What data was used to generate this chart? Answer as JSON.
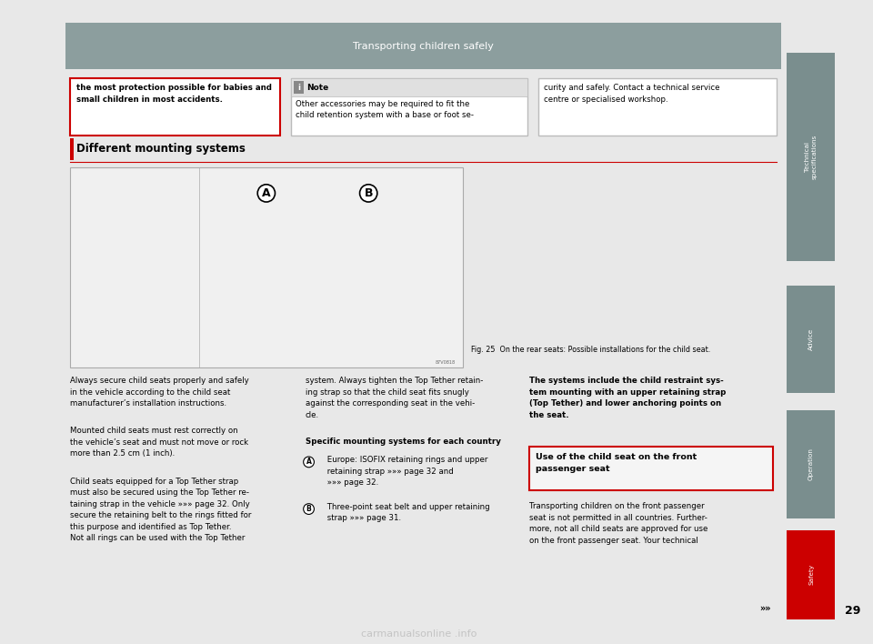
{
  "page_bg": "#e8e8e8",
  "content_bg": "#ffffff",
  "header_title": "Transporting children safely",
  "header_bg": "#8c9e9e",
  "header_text_color": "#ffffff",
  "sidebar_tabs": [
    "Technical specifications",
    "Advice",
    "Operation",
    "Safety"
  ],
  "sidebar_colors": [
    "#7a8e8e",
    "#7a8e8e",
    "#7a8e8e",
    "#cc0000"
  ],
  "page_number": "29",
  "box1_text": "the most protection possible for babies and\nsmall children in most accidents.",
  "box1_border": "#cc0000",
  "box2_header": "Note",
  "box2_text": "Other accessories may be required to fit the\nchild retention system with a base or foot se-",
  "box3_text": "curity and safely. Contact a technical service\ncentre or specialised workshop.",
  "section_title": "Different mounting systems",
  "fig_caption": "Fig. 25  On the rear seats: Possible installations for the child seat.",
  "col1_p1": "Always secure child seats properly and safely\nin the vehicle according to the child seat\nmanufacturer’s installation instructions.",
  "col1_p2": "Mounted child seats must rest correctly on\nthe vehicle’s seat and must not move or rock\nmore than 2.5 cm (1 inch).",
  "col1_p3": "Child seats equipped for a Top Tether strap\nmust also be secured using the Top Tether re-\ntaining strap in the vehicle »»» page 32. Only\nsecure the retaining belt to the rings fitted for\nthis purpose and identified as Top Tether.\nNot all rings can be used with the Top Tether",
  "col2_p1": "system. Always tighten the Top Tether retain-\ning strap so that the child seat fits snugly\nagainst the corresponding seat in the vehi-\ncle.",
  "col2_subheader": "Specific mounting systems for each country",
  "col2_bullet_A": " Europe: ISOFIX retaining rings and upper\n retaining strap »»» page 32 and\n »»» page 32.",
  "col2_bullet_B": " Three-point seat belt and upper retaining\n strap »»» page 31.",
  "col3_bold": "The systems include the child restraint sys-\ntem mounting with an upper retaining strap\n(Top Tether) and lower anchoring points on\nthe seat.",
  "col3_box_title": "Use of the child seat on the front\npassenger seat",
  "col3_text": "Transporting children on the front passenger\nseat is not permitted in all countries. Further-\nmore, not all child seats are approved for use\non the front passenger seat. Your technical",
  "watermark": "carmanualsonline .info"
}
